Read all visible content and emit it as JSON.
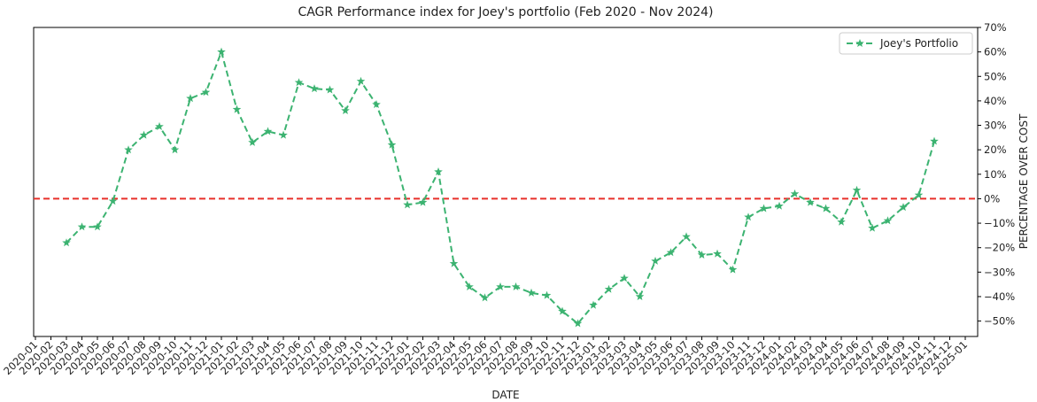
{
  "chart_data": {
    "type": "line",
    "title": "CAGR Performance index for Joey's portfolio (Feb 2020 - Nov 2024)",
    "xlabel": "DATE",
    "ylabel": "PERCENTAGE OVER COST",
    "x": [
      "2020-03",
      "2020-04",
      "2020-05",
      "2020-06",
      "2020-07",
      "2020-08",
      "2020-09",
      "2020-10",
      "2020-11",
      "2020-12",
      "2021-01",
      "2021-02",
      "2021-03",
      "2021-04",
      "2021-05",
      "2021-06",
      "2021-07",
      "2021-08",
      "2021-09",
      "2021-10",
      "2021-11",
      "2021-12",
      "2022-01",
      "2022-02",
      "2022-03",
      "2022-04",
      "2022-05",
      "2022-06",
      "2022-07",
      "2022-08",
      "2022-09",
      "2022-10",
      "2022-11",
      "2022-12",
      "2023-01",
      "2023-02",
      "2023-03",
      "2023-04",
      "2023-05",
      "2023-06",
      "2023-07",
      "2023-08",
      "2023-09",
      "2023-10",
      "2023-11",
      "2023-12",
      "2024-01",
      "2024-02",
      "2024-03",
      "2024-04",
      "2024-05",
      "2024-06",
      "2024-07",
      "2024-08",
      "2024-09",
      "2024-10",
      "2024-11"
    ],
    "series": [
      {
        "name": "Joey's Portfolio",
        "color": "#3cb371",
        "dashed": true,
        "marker": "star",
        "values": [
          -18,
          -11.5,
          -11.5,
          -1,
          20,
          26,
          29.5,
          20,
          41,
          43.5,
          60,
          36.5,
          23,
          27.5,
          26,
          47.5,
          45,
          44.5,
          36,
          48,
          38.5,
          22,
          -2.5,
          -1.5,
          11,
          -26.5,
          -36,
          -40.5,
          -36,
          -36,
          -38.5,
          -39.5,
          -46,
          -51,
          -43.5,
          -37,
          -32.5,
          -40,
          -25.5,
          -22,
          -15.5,
          -23,
          -22.5,
          -29,
          -7.5,
          -4,
          -3,
          2,
          -1.5,
          -4,
          -9.5,
          3.5,
          -12,
          -9,
          -3.5,
          1.5,
          23.5
        ]
      }
    ],
    "hline": {
      "value": 0,
      "color": "#e8302a",
      "dashed": true
    },
    "xlim": [
      "2020-01",
      "2025-01"
    ],
    "xticks": [
      "2020-01",
      "2020-02",
      "2020-03",
      "2020-04",
      "2020-05",
      "2020-06",
      "2020-07",
      "2020-08",
      "2020-09",
      "2020-10",
      "2020-11",
      "2020-12",
      "2021-01",
      "2021-02",
      "2021-03",
      "2021-04",
      "2021-05",
      "2021-06",
      "2021-07",
      "2021-08",
      "2021-09",
      "2021-10",
      "2021-11",
      "2021-12",
      "2022-01",
      "2022-02",
      "2022-03",
      "2022-04",
      "2022-05",
      "2022-06",
      "2022-07",
      "2022-08",
      "2022-09",
      "2022-10",
      "2022-11",
      "2022-12",
      "2023-01",
      "2023-02",
      "2023-03",
      "2023-04",
      "2023-05",
      "2023-06",
      "2023-07",
      "2023-08",
      "2023-09",
      "2023-10",
      "2023-11",
      "2023-12",
      "2024-01",
      "2024-02",
      "2024-03",
      "2024-04",
      "2024-05",
      "2024-06",
      "2024-07",
      "2024-08",
      "2024-09",
      "2024-10",
      "2024-11",
      "2024-12",
      "2025-01"
    ],
    "ylim": [
      -56.3,
      70
    ],
    "yticks": [
      {
        "value": -50,
        "label": "−50%"
      },
      {
        "value": -40,
        "label": "−40%"
      },
      {
        "value": -30,
        "label": "−30%"
      },
      {
        "value": -20,
        "label": "−20%"
      },
      {
        "value": -10,
        "label": "−10%"
      },
      {
        "value": 0,
        "label": "0%"
      },
      {
        "value": 10,
        "label": "10%"
      },
      {
        "value": 20,
        "label": "20%"
      },
      {
        "value": 30,
        "label": "30%"
      },
      {
        "value": 40,
        "label": "40%"
      },
      {
        "value": 50,
        "label": "50%"
      },
      {
        "value": 60,
        "label": "60%"
      },
      {
        "value": 70,
        "label": "70%"
      }
    ],
    "yaxis_side": "right",
    "grid": false,
    "legend": "upper right"
  }
}
